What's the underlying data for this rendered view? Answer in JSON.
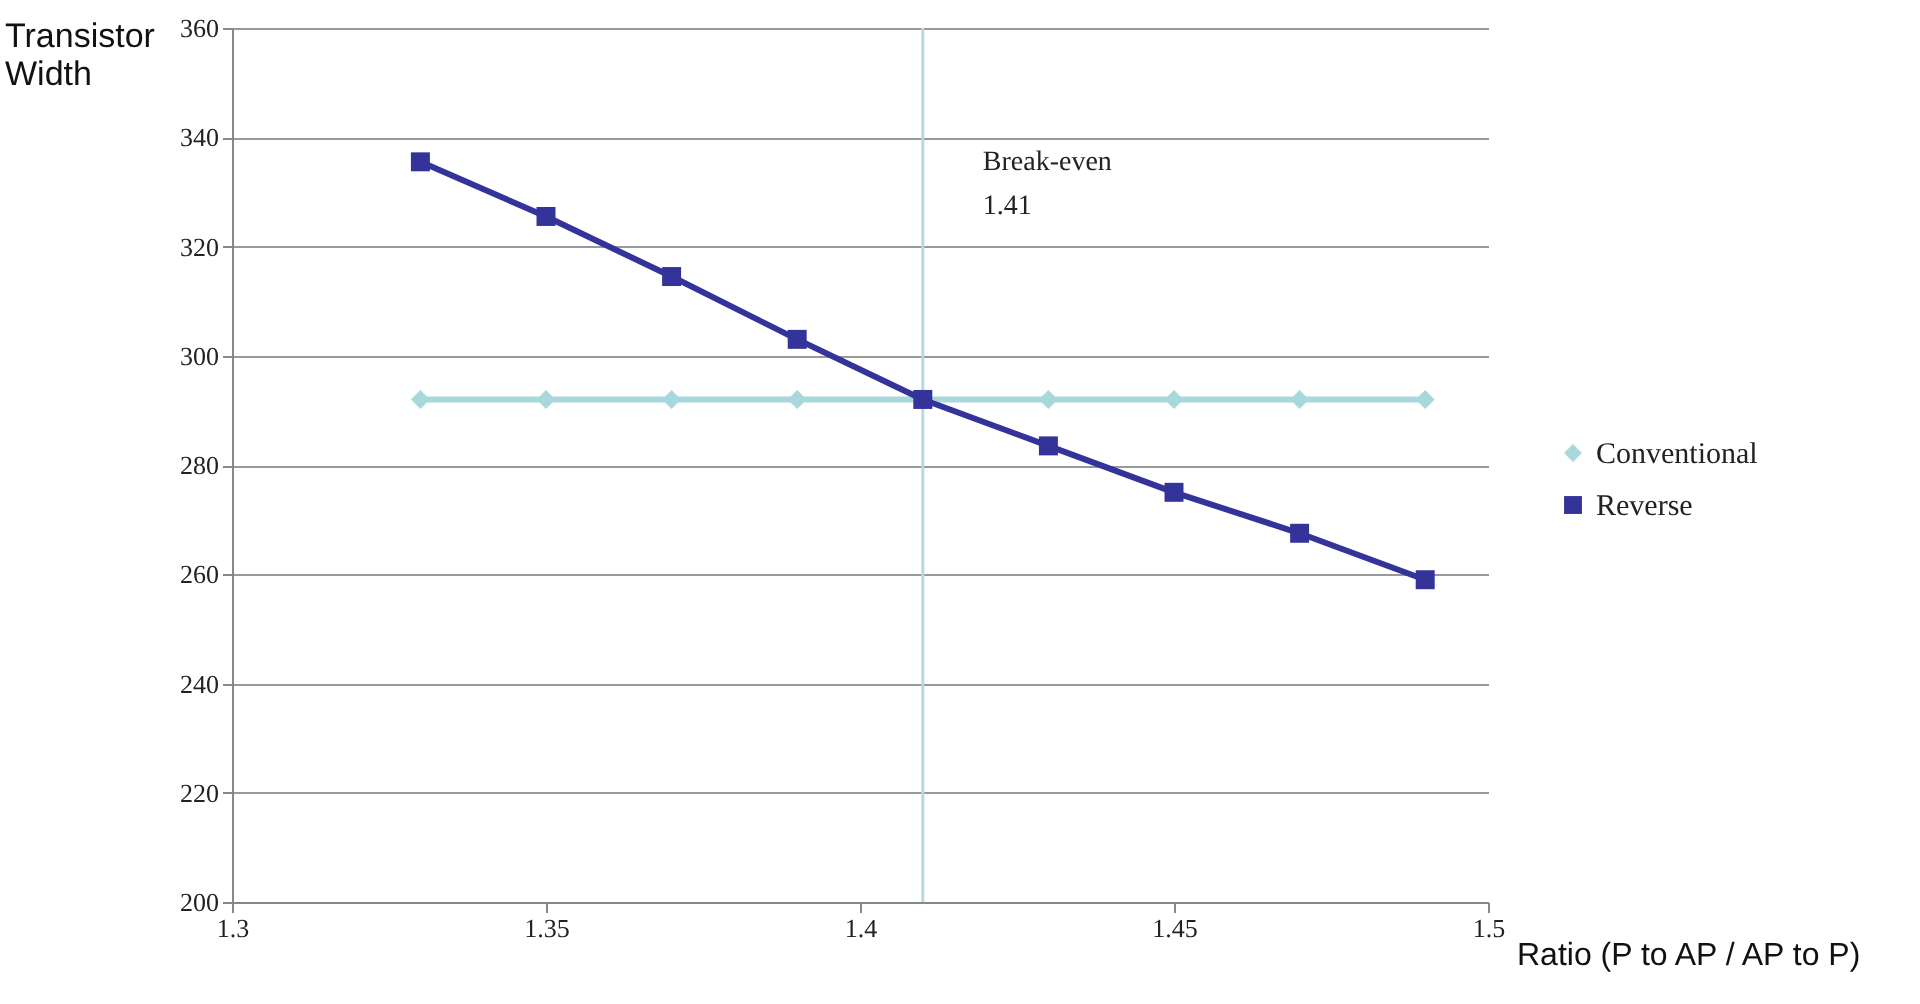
{
  "chart_data": {
    "type": "line",
    "ylabel": "Transistor Width",
    "xlabel": "Ratio (P to AP / AP to P)",
    "x": [
      1.33,
      1.35,
      1.37,
      1.39,
      1.41,
      1.43,
      1.45,
      1.47,
      1.49
    ],
    "series": [
      {
        "name": "Conventional",
        "color": "#a8d8dc",
        "marker": "diamond",
        "values": [
          292,
          292,
          292,
          292,
          292,
          292,
          292,
          292,
          292
        ]
      },
      {
        "name": "Reverse",
        "color": "#333399",
        "marker": "square",
        "values": [
          335.5,
          325.5,
          314.5,
          303,
          292,
          283.5,
          275,
          267.5,
          259
        ]
      }
    ],
    "xlim": [
      1.3,
      1.5
    ],
    "xticks": [
      1.3,
      1.35,
      1.4,
      1.45,
      1.5
    ],
    "ylim": [
      200,
      360
    ],
    "yticks": [
      200,
      220,
      240,
      260,
      280,
      300,
      320,
      340,
      360
    ],
    "ref_lines": [
      {
        "axis": "x",
        "value": 1.41,
        "label": "Break-even\n1.41",
        "color": "#b8d8e8"
      }
    ],
    "grid": "y",
    "legend": "right"
  }
}
